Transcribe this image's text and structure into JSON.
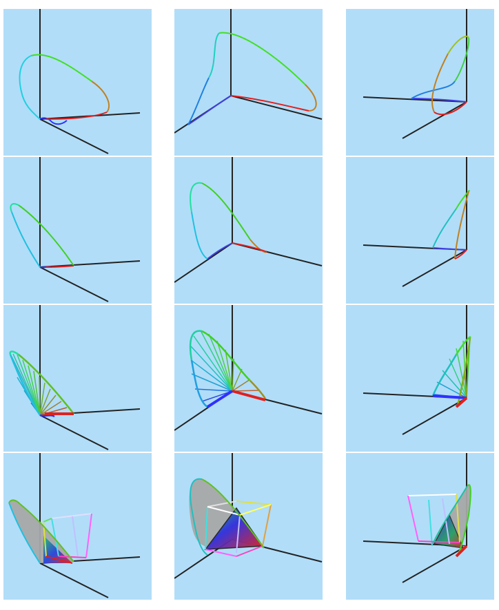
{
  "figure": {
    "layout": {
      "rows": 4,
      "columns": 3
    },
    "background_color": "#b1ddf8",
    "axis_color": "#222222",
    "rows": [
      {
        "style": "spectral-locus-curve"
      },
      {
        "style": "spectral-locus-curve"
      },
      {
        "style": "spectral-locus-with-rays"
      },
      {
        "style": "spectral-locus-with-gamut-cube"
      }
    ],
    "views": [
      "view-1",
      "view-2",
      "view-3"
    ]
  }
}
